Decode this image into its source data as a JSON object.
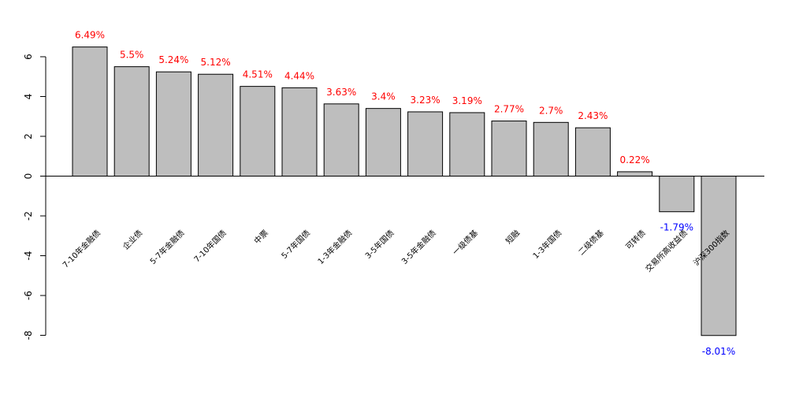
{
  "chart_data": {
    "type": "bar",
    "categories": [
      "7-10年金融债",
      "企业债",
      "5-7年金融债",
      "7-10年国债",
      "中票",
      "5-7年国债",
      "1-3年金融债",
      "3-5年国债",
      "3-5年金融债",
      "一级债基",
      "短融",
      "1-3年国债",
      "二级债基",
      "可转债",
      "交易所高收益债",
      "沪深300指数"
    ],
    "values": [
      6.49,
      5.5,
      5.24,
      5.12,
      4.51,
      4.44,
      3.63,
      3.4,
      3.23,
      3.19,
      2.77,
      2.7,
      2.43,
      0.22,
      -1.79,
      -8.01
    ],
    "data_labels": [
      "6.49%",
      "5.5%",
      "5.24%",
      "5.12%",
      "4.51%",
      "4.44%",
      "3.63%",
      "3.4%",
      "3.23%",
      "3.19%",
      "2.77%",
      "2.7%",
      "2.43%",
      "0.22%",
      "-1.79%",
      "-8.01%"
    ],
    "yticks": [
      -8,
      -6,
      -4,
      -2,
      0,
      2,
      4,
      6
    ],
    "ylim": [
      -8,
      6
    ],
    "grid": false,
    "bar_color": "#bebebe",
    "positive_label_color": "#ff0000",
    "negative_label_color": "#0000ff",
    "title": "",
    "xlabel": "",
    "ylabel": ""
  }
}
